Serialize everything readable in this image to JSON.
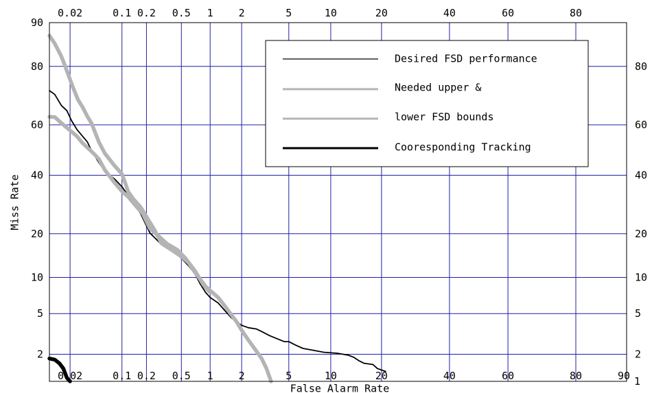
{
  "chart_data": {
    "type": "line",
    "title": "",
    "xlabel": "False Alarm Rate",
    "ylabel": "Miss Rate",
    "grid": true,
    "legend_position": "top-right",
    "x_ticks": [
      {
        "value": 0.02,
        "label": "0.02"
      },
      {
        "value": 0.1,
        "label": "0.1"
      },
      {
        "value": 0.2,
        "label": "0.2"
      },
      {
        "value": 0.5,
        "label": "0.5"
      },
      {
        "value": 1,
        "label": "1"
      },
      {
        "value": 2,
        "label": "2"
      },
      {
        "value": 5,
        "label": "5"
      },
      {
        "value": 10,
        "label": "10"
      },
      {
        "value": 20,
        "label": "20"
      },
      {
        "value": 40,
        "label": "40"
      },
      {
        "value": 60,
        "label": "60"
      },
      {
        "value": 80,
        "label": "80"
      }
    ],
    "x_end_label": "90",
    "y_ticks": [
      {
        "value": 2,
        "label": "2"
      },
      {
        "value": 5,
        "label": "5"
      },
      {
        "value": 10,
        "label": "10"
      },
      {
        "value": 20,
        "label": "20"
      },
      {
        "value": 40,
        "label": "40"
      },
      {
        "value": 60,
        "label": "60"
      },
      {
        "value": 80,
        "label": "80"
      }
    ],
    "y_left_end_label": "90",
    "y_right_end_label": "1",
    "legend": [
      "Desired FSD performance",
      "Needed upper &",
      "lower FSD bounds",
      "Cooresponding Tracking"
    ],
    "series": [
      {
        "color": "#000000",
        "style": "thin",
        "points": [
          [
            0.01,
            72.5
          ],
          [
            0.012,
            71.2
          ],
          [
            0.015,
            67.3
          ],
          [
            0.018,
            65.4
          ],
          [
            0.021,
            61.6
          ],
          [
            0.025,
            58.2
          ],
          [
            0.03,
            55.5
          ],
          [
            0.035,
            53.2
          ],
          [
            0.04,
            49.6
          ],
          [
            0.05,
            45.0
          ],
          [
            0.06,
            41.6
          ],
          [
            0.08,
            38.6
          ],
          [
            0.1,
            35.6
          ],
          [
            0.13,
            30.9
          ],
          [
            0.17,
            26.1
          ],
          [
            0.22,
            20.2
          ],
          [
            0.3,
            17.1
          ],
          [
            0.4,
            15.6
          ],
          [
            0.5,
            13.8
          ],
          [
            0.6,
            12.2
          ],
          [
            0.7,
            10.6
          ],
          [
            0.8,
            8.8
          ],
          [
            0.9,
            7.6
          ],
          [
            1.0,
            6.9
          ],
          [
            1.2,
            6.2
          ],
          [
            1.4,
            5.3
          ],
          [
            1.6,
            4.6
          ],
          [
            1.8,
            4.2
          ],
          [
            2.0,
            3.9
          ],
          [
            2.3,
            3.7
          ],
          [
            2.7,
            3.6
          ],
          [
            3.0,
            3.4
          ],
          [
            3.5,
            3.1
          ],
          [
            4.0,
            2.9
          ],
          [
            4.6,
            2.7
          ],
          [
            5.0,
            2.7
          ],
          [
            5.6,
            2.5
          ],
          [
            6.4,
            2.3
          ],
          [
            7.6,
            2.2
          ],
          [
            9.0,
            2.1
          ],
          [
            11,
            2.05
          ],
          [
            12,
            2.0
          ],
          [
            13,
            1.95
          ],
          [
            14,
            1.85
          ],
          [
            15,
            1.7
          ],
          [
            16,
            1.6
          ],
          [
            18,
            1.55
          ],
          [
            19,
            1.4
          ],
          [
            21,
            1.3
          ]
        ]
      },
      {
        "color": "#b4b4b4",
        "style": "thick",
        "points": [
          [
            0.01,
            87.5
          ],
          [
            0.012,
            85.8
          ],
          [
            0.015,
            82.7
          ],
          [
            0.017,
            80.1
          ],
          [
            0.019,
            77.4
          ],
          [
            0.022,
            73.6
          ],
          [
            0.026,
            69.3
          ],
          [
            0.03,
            66.7
          ],
          [
            0.035,
            63.2
          ],
          [
            0.04,
            60.5
          ],
          [
            0.05,
            53.2
          ],
          [
            0.06,
            48.7
          ],
          [
            0.08,
            43.8
          ],
          [
            0.1,
            40.5
          ],
          [
            0.11,
            37.0
          ],
          [
            0.12,
            33.7
          ],
          [
            0.14,
            31.0
          ],
          [
            0.17,
            28.3
          ],
          [
            0.2,
            25.1
          ],
          [
            0.25,
            21.0
          ],
          [
            0.3,
            17.4
          ],
          [
            0.4,
            15.6
          ],
          [
            0.5,
            14.2
          ],
          [
            0.6,
            12.8
          ],
          [
            0.7,
            10.9
          ],
          [
            0.8,
            9.6
          ],
          [
            0.9,
            8.5
          ],
          [
            1.0,
            7.9
          ],
          [
            1.2,
            6.9
          ],
          [
            1.4,
            5.8
          ],
          [
            1.6,
            4.9
          ],
          [
            1.8,
            4.2
          ],
          [
            2.0,
            3.5
          ],
          [
            2.3,
            2.8
          ],
          [
            2.6,
            2.3
          ],
          [
            3.0,
            1.8
          ],
          [
            3.3,
            1.4
          ],
          [
            3.6,
            1.0
          ]
        ]
      },
      {
        "color": "#b4b4b4",
        "style": "thick",
        "points": [
          [
            0.01,
            63.1
          ],
          [
            0.012,
            63.0
          ],
          [
            0.015,
            60.7
          ],
          [
            0.02,
            57.8
          ],
          [
            0.025,
            55.5
          ],
          [
            0.03,
            52.8
          ],
          [
            0.04,
            49.4
          ],
          [
            0.05,
            46.4
          ],
          [
            0.06,
            42.1
          ],
          [
            0.08,
            37.2
          ],
          [
            0.1,
            33.9
          ],
          [
            0.12,
            31.9
          ],
          [
            0.15,
            28.6
          ],
          [
            0.18,
            26.1
          ],
          [
            0.22,
            21.5
          ],
          [
            0.27,
            19.6
          ],
          [
            0.35,
            17.2
          ],
          [
            0.45,
            15.8
          ],
          [
            0.55,
            13.9
          ],
          [
            0.7,
            11.2
          ],
          [
            0.85,
            8.8
          ],
          [
            1.0,
            7.6
          ]
        ]
      },
      {
        "color": "#000000",
        "style": "thick",
        "points": [
          [
            0.01,
            1.8
          ],
          [
            0.012,
            1.75
          ],
          [
            0.014,
            1.6
          ],
          [
            0.016,
            1.4
          ],
          [
            0.018,
            1.1
          ],
          [
            0.02,
            1.0
          ]
        ]
      }
    ]
  }
}
